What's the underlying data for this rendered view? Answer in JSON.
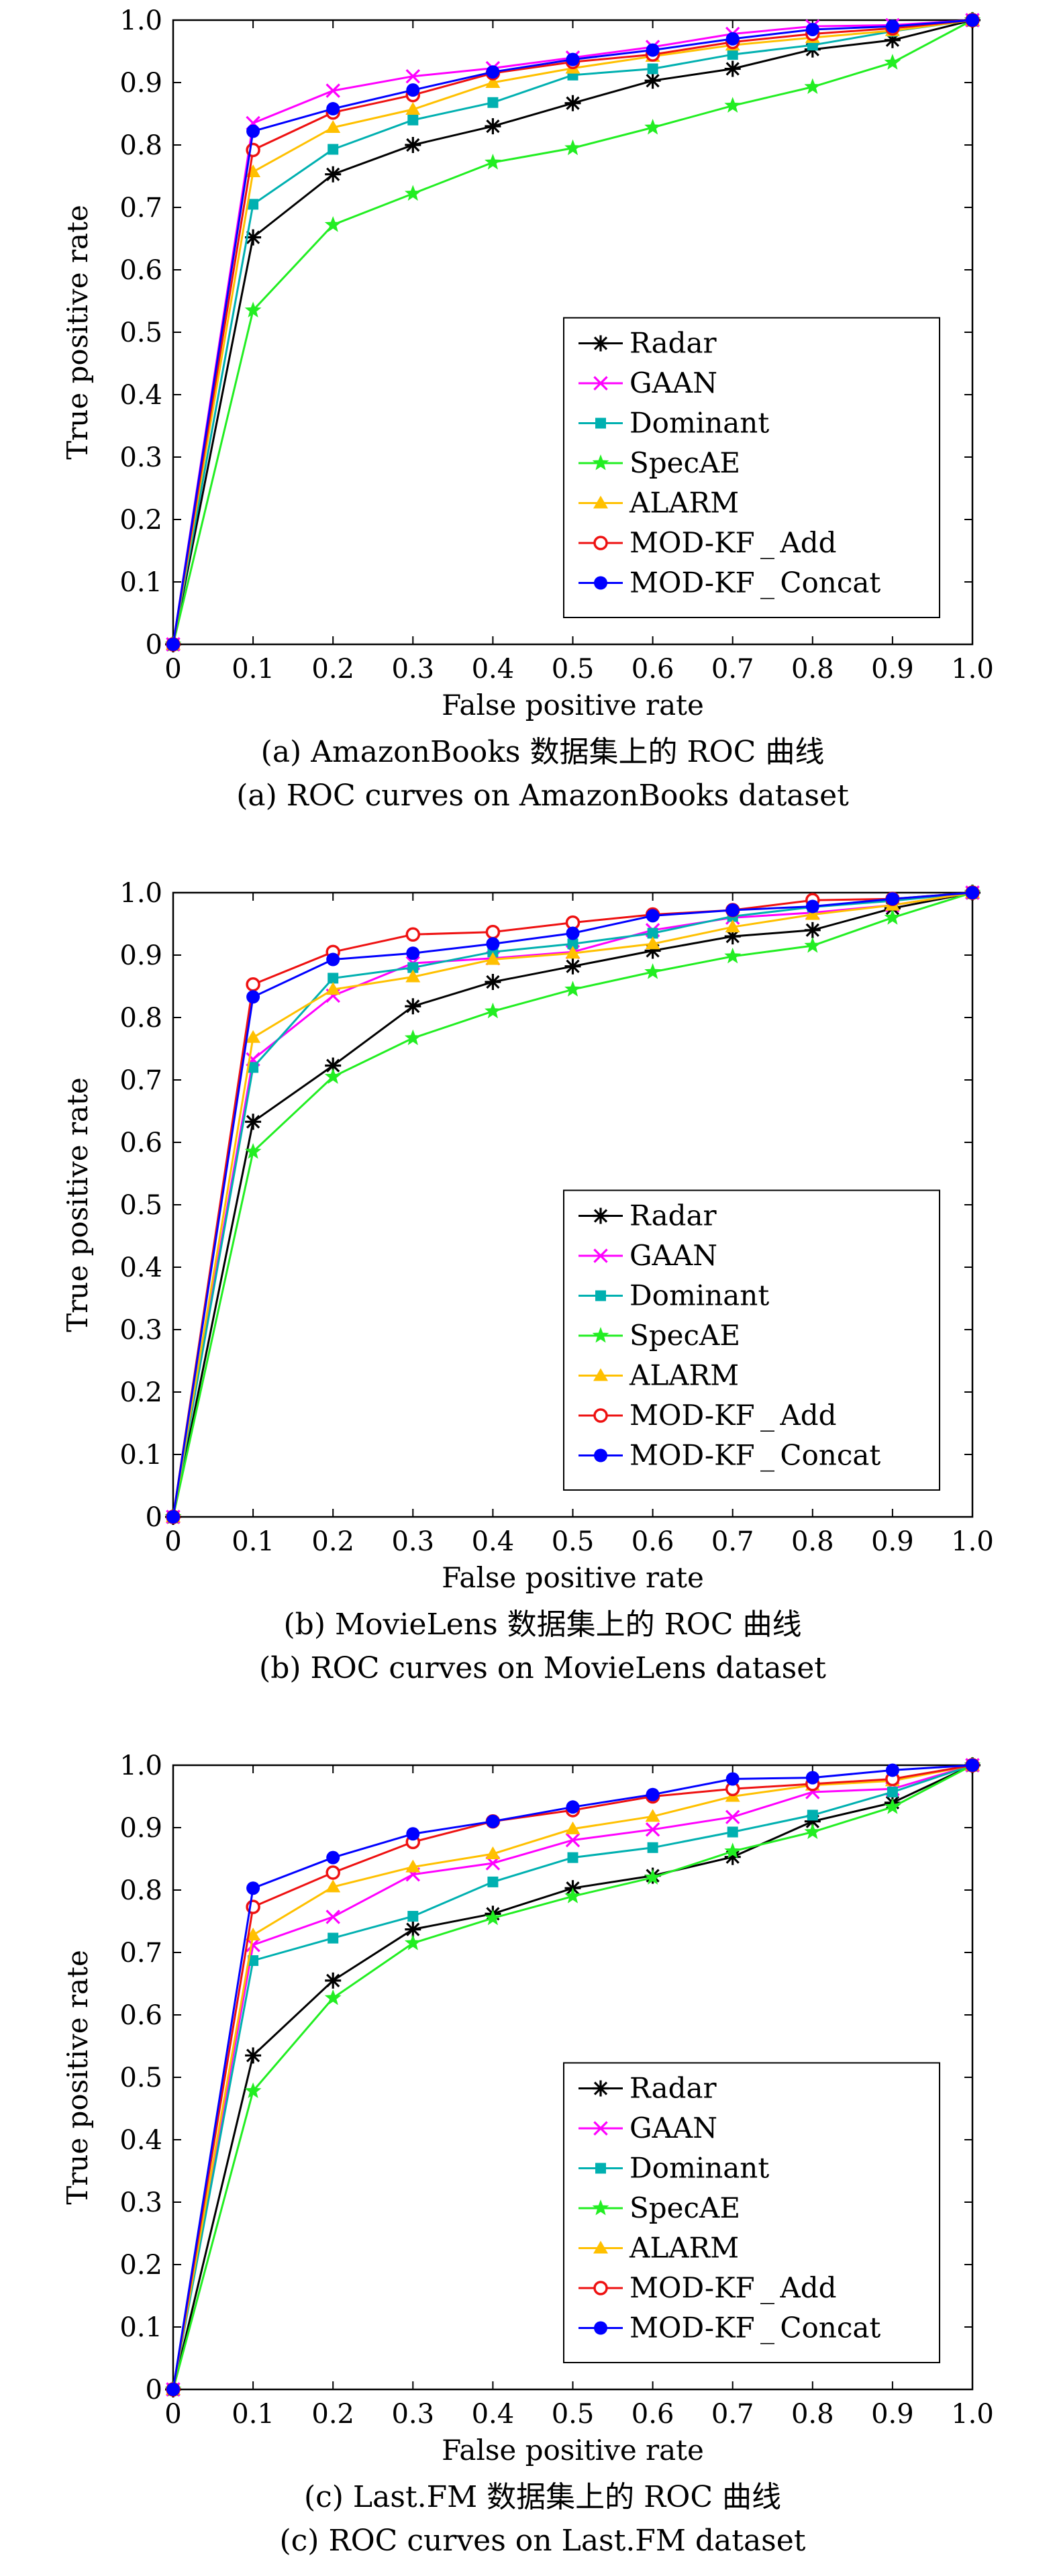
{
  "series_styles": [
    {
      "name": "Radar",
      "color": "#000000",
      "marker": "asterisk"
    },
    {
      "name": "GAAN",
      "color": "#ff00ff",
      "marker": "x"
    },
    {
      "name": "Dominant",
      "color": "#00b0b0",
      "marker": "square"
    },
    {
      "name": "SpecAE",
      "color": "#22ee22",
      "marker": "star"
    },
    {
      "name": "ALARM",
      "color": "#ffc000",
      "marker": "triangle"
    },
    {
      "name": "MOD-KF_Add",
      "color": "#ee1111",
      "marker": "circle-open"
    },
    {
      "name": "MOD-KF_Concat",
      "color": "#0000ff",
      "marker": "circle-filled"
    }
  ],
  "chart_data": [
    {
      "type": "line",
      "caption_zh": "(a) AmazonBooks 数据集上的 ROC 曲线",
      "caption_en": "(a) ROC curves on AmazonBooks dataset",
      "xlabel": "False positive rate",
      "ylabel": "True positive rate",
      "xlim": [
        0,
        1
      ],
      "ylim": [
        0,
        1
      ],
      "x_ticks": [
        "0",
        "0.1",
        "0.2",
        "0.3",
        "0.4",
        "0.5",
        "0.6",
        "0.7",
        "0.8",
        "0.9",
        "1.0"
      ],
      "y_ticks": [
        "0",
        "0.1",
        "0.2",
        "0.3",
        "0.4",
        "0.5",
        "0.6",
        "0.7",
        "0.8",
        "0.9",
        "1.0"
      ],
      "legend_position": "bottom-right",
      "grid": false,
      "x": [
        0,
        0.1,
        0.2,
        0.3,
        0.4,
        0.5,
        0.6,
        0.7,
        0.8,
        0.9,
        1.0
      ],
      "series": [
        {
          "name": "Radar",
          "values": [
            0,
            0.652,
            0.753,
            0.8,
            0.83,
            0.867,
            0.903,
            0.922,
            0.953,
            0.968,
            1.0
          ]
        },
        {
          "name": "GAAN",
          "values": [
            0,
            0.835,
            0.887,
            0.91,
            0.923,
            0.94,
            0.957,
            0.978,
            0.99,
            0.992,
            1.0
          ]
        },
        {
          "name": "Dominant",
          "values": [
            0,
            0.705,
            0.793,
            0.84,
            0.868,
            0.912,
            0.922,
            0.945,
            0.96,
            0.982,
            1.0
          ]
        },
        {
          "name": "SpecAE",
          "values": [
            0,
            0.535,
            0.672,
            0.722,
            0.772,
            0.795,
            0.828,
            0.863,
            0.893,
            0.932,
            1.0
          ]
        },
        {
          "name": "ALARM",
          "values": [
            0,
            0.757,
            0.828,
            0.857,
            0.9,
            0.923,
            0.942,
            0.96,
            0.972,
            0.983,
            1.0
          ]
        },
        {
          "name": "MOD-KF_Add",
          "values": [
            0,
            0.792,
            0.852,
            0.88,
            0.915,
            0.933,
            0.945,
            0.965,
            0.978,
            0.987,
            1.0
          ]
        },
        {
          "name": "MOD-KF_Concat",
          "values": [
            0,
            0.822,
            0.858,
            0.888,
            0.917,
            0.937,
            0.952,
            0.97,
            0.985,
            0.99,
            1.0
          ]
        }
      ]
    },
    {
      "type": "line",
      "caption_zh": "(b) MovieLens 数据集上的 ROC 曲线",
      "caption_en": "(b) ROC curves on MovieLens dataset",
      "xlabel": "False positive rate",
      "ylabel": "True positive rate",
      "xlim": [
        0,
        1
      ],
      "ylim": [
        0,
        1
      ],
      "x_ticks": [
        "0",
        "0.1",
        "0.2",
        "0.3",
        "0.4",
        "0.5",
        "0.6",
        "0.7",
        "0.8",
        "0.9",
        "1.0"
      ],
      "y_ticks": [
        "0",
        "0.1",
        "0.2",
        "0.3",
        "0.4",
        "0.5",
        "0.6",
        "0.7",
        "0.8",
        "0.9",
        "1.0"
      ],
      "legend_position": "bottom-right",
      "grid": false,
      "x": [
        0,
        0.1,
        0.2,
        0.3,
        0.4,
        0.5,
        0.6,
        0.7,
        0.8,
        0.9,
        1.0
      ],
      "series": [
        {
          "name": "Radar",
          "values": [
            0,
            0.633,
            0.723,
            0.818,
            0.857,
            0.882,
            0.907,
            0.93,
            0.94,
            0.975,
            1.0
          ]
        },
        {
          "name": "GAAN",
          "values": [
            0,
            0.733,
            0.835,
            0.887,
            0.895,
            0.905,
            0.94,
            0.96,
            0.968,
            0.98,
            1.0
          ]
        },
        {
          "name": "Dominant",
          "values": [
            0,
            0.72,
            0.863,
            0.88,
            0.905,
            0.918,
            0.935,
            0.962,
            0.977,
            0.987,
            1.0
          ]
        },
        {
          "name": "SpecAE",
          "values": [
            0,
            0.585,
            0.705,
            0.767,
            0.81,
            0.845,
            0.873,
            0.898,
            0.915,
            0.96,
            1.0
          ]
        },
        {
          "name": "ALARM",
          "values": [
            0,
            0.768,
            0.845,
            0.865,
            0.893,
            0.903,
            0.918,
            0.945,
            0.965,
            0.98,
            1.0
          ]
        },
        {
          "name": "MOD-KF_Add",
          "values": [
            0,
            0.853,
            0.905,
            0.933,
            0.937,
            0.952,
            0.965,
            0.972,
            0.988,
            0.99,
            1.0
          ]
        },
        {
          "name": "MOD-KF_Concat",
          "values": [
            0,
            0.833,
            0.893,
            0.903,
            0.918,
            0.935,
            0.963,
            0.972,
            0.978,
            0.99,
            1.0
          ]
        }
      ]
    },
    {
      "type": "line",
      "caption_zh": "(c) Last.FM 数据集上的 ROC 曲线",
      "caption_en": "(c) ROC curves on Last.FM dataset",
      "xlabel": "False positive rate",
      "ylabel": "True positive rate",
      "xlim": [
        0,
        1
      ],
      "ylim": [
        0,
        1
      ],
      "x_ticks": [
        "0",
        "0.1",
        "0.2",
        "0.3",
        "0.4",
        "0.5",
        "0.6",
        "0.7",
        "0.8",
        "0.9",
        "1.0"
      ],
      "y_ticks": [
        "0",
        "0.1",
        "0.2",
        "0.3",
        "0.4",
        "0.5",
        "0.6",
        "0.7",
        "0.8",
        "0.9",
        "1.0"
      ],
      "legend_position": "bottom-right",
      "grid": false,
      "x": [
        0,
        0.1,
        0.2,
        0.3,
        0.4,
        0.5,
        0.6,
        0.7,
        0.8,
        0.9,
        1.0
      ],
      "series": [
        {
          "name": "Radar",
          "values": [
            0,
            0.535,
            0.655,
            0.737,
            0.762,
            0.803,
            0.823,
            0.853,
            0.91,
            0.94,
            1.0
          ]
        },
        {
          "name": "GAAN",
          "values": [
            0,
            0.712,
            0.757,
            0.825,
            0.843,
            0.88,
            0.897,
            0.917,
            0.957,
            0.962,
            1.0
          ]
        },
        {
          "name": "Dominant",
          "values": [
            0,
            0.687,
            0.723,
            0.758,
            0.813,
            0.852,
            0.868,
            0.893,
            0.92,
            0.957,
            1.0
          ]
        },
        {
          "name": "SpecAE",
          "values": [
            0,
            0.478,
            0.627,
            0.715,
            0.755,
            0.79,
            0.82,
            0.862,
            0.893,
            0.933,
            1.0
          ]
        },
        {
          "name": "ALARM",
          "values": [
            0,
            0.728,
            0.805,
            0.837,
            0.858,
            0.898,
            0.918,
            0.95,
            0.968,
            0.975,
            1.0
          ]
        },
        {
          "name": "MOD-KF_Add",
          "values": [
            0,
            0.773,
            0.828,
            0.877,
            0.91,
            0.928,
            0.95,
            0.962,
            0.97,
            0.978,
            1.0
          ]
        },
        {
          "name": "MOD-KF_Concat",
          "values": [
            0,
            0.803,
            0.852,
            0.89,
            0.91,
            0.933,
            0.953,
            0.978,
            0.98,
            0.992,
            1.0
          ]
        }
      ]
    }
  ]
}
